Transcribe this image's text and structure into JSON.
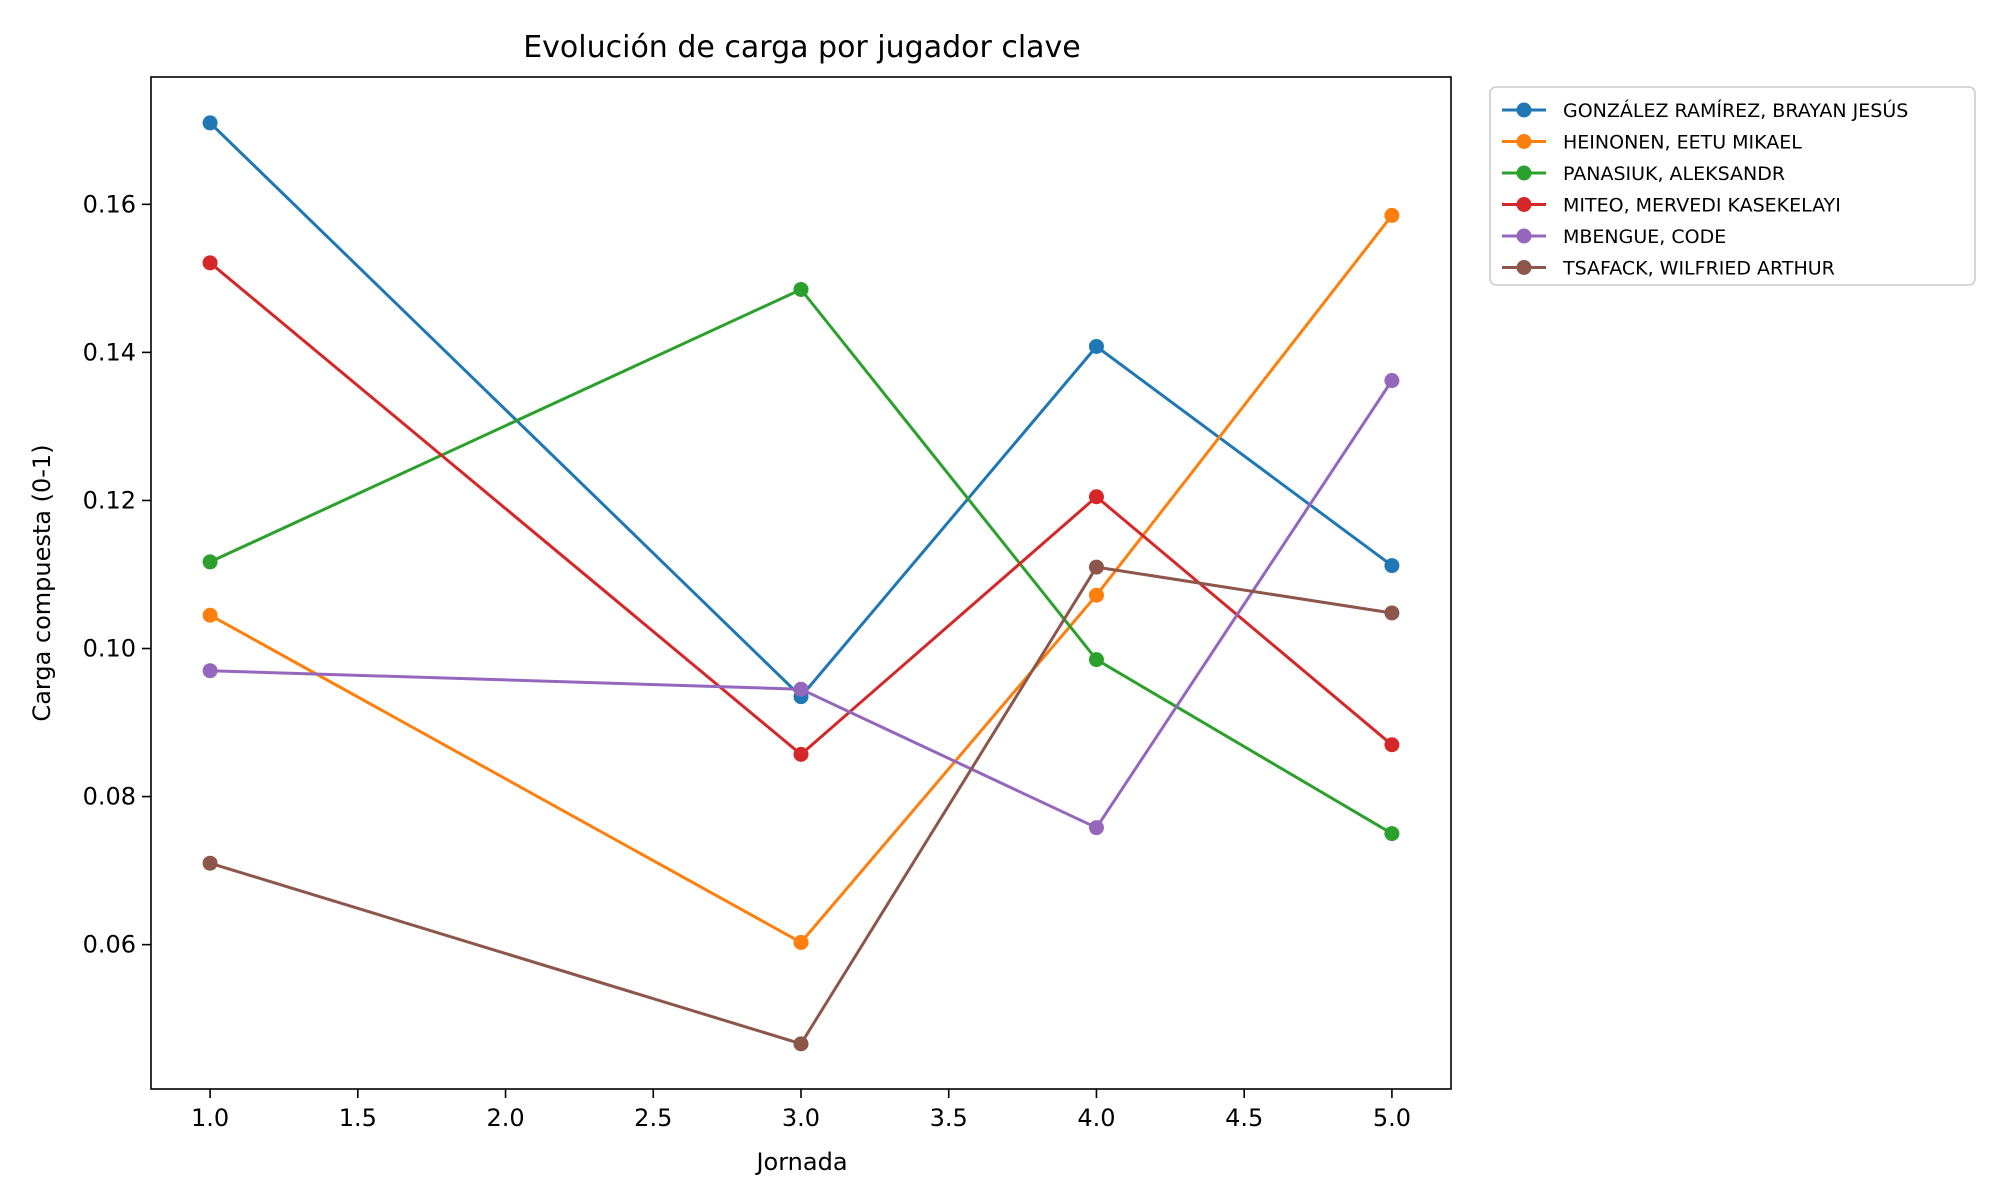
{
  "chart_data": {
    "type": "line",
    "title": "Evolución de carga por jugador clave",
    "xlabel": "Jornada",
    "ylabel": "Carga compuesta (0-1)",
    "xlim": [
      0.8,
      5.2
    ],
    "ylim": [
      0.0405,
      0.1772
    ],
    "xticks": [
      1.0,
      1.5,
      2.0,
      2.5,
      3.0,
      3.5,
      4.0,
      4.5,
      5.0
    ],
    "xtick_labels": [
      "1.0",
      "1.5",
      "2.0",
      "2.5",
      "3.0",
      "3.5",
      "4.0",
      "4.5",
      "5.0"
    ],
    "yticks": [
      0.06,
      0.08,
      0.1,
      0.12,
      0.14,
      0.16
    ],
    "ytick_labels": [
      "0.06",
      "0.08",
      "0.10",
      "0.12",
      "0.14",
      "0.16"
    ],
    "x": [
      1,
      3,
      4,
      5
    ],
    "legend_position": "outside-right-top",
    "series": [
      {
        "name": "GONZÁLEZ RAMÍREZ, BRAYAN JESÚS",
        "color": "#1f77b4",
        "values": [
          0.171,
          0.0935,
          0.1408,
          0.1112
        ]
      },
      {
        "name": "HEINONEN, EETU MIKAEL",
        "color": "#ff7f0e",
        "values": [
          0.1045,
          0.0603,
          0.1072,
          0.1585
        ]
      },
      {
        "name": "PANASIUK, ALEKSANDR",
        "color": "#2ca02c",
        "values": [
          0.1117,
          0.1485,
          0.0985,
          0.075
        ]
      },
      {
        "name": "MITEO, MERVEDI KASEKELAYI",
        "color": "#d62728",
        "values": [
          0.1521,
          0.0857,
          0.1205,
          0.087
        ]
      },
      {
        "name": "MBENGUE, CODE",
        "color": "#9467bd",
        "values": [
          0.097,
          0.0945,
          0.0758,
          0.1362
        ]
      },
      {
        "name": "TSAFACK, WILFRIED ARTHUR",
        "color": "#8c564b",
        "values": [
          0.071,
          0.0466,
          0.111,
          0.1048
        ]
      }
    ]
  }
}
